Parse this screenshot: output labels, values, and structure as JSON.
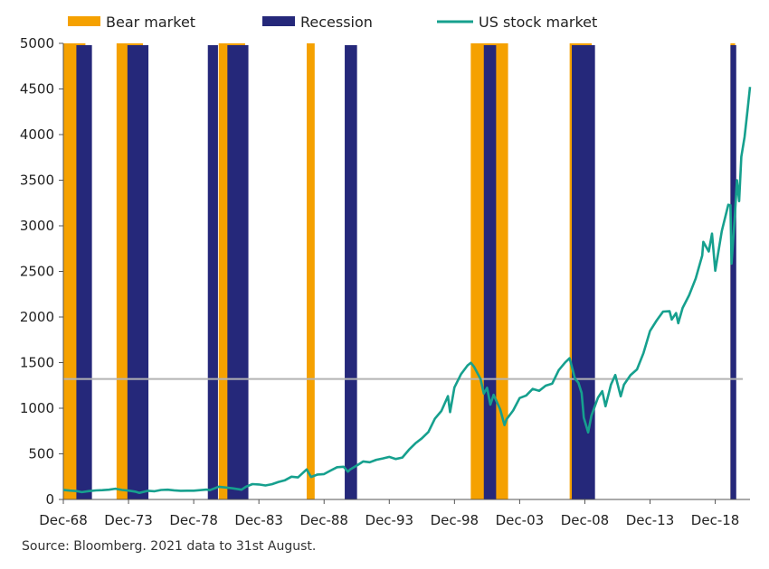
{
  "chart_data": {
    "type": "line",
    "title": "",
    "xlabel": "",
    "ylabel": "",
    "xlim": [
      "1968-12",
      "2021-08"
    ],
    "ylim": [
      0,
      5000
    ],
    "y_ticks": [
      0,
      500,
      1000,
      1500,
      2000,
      2500,
      3000,
      3500,
      4000,
      4500,
      5000
    ],
    "x_ticks": [
      {
        "date": "1968-12",
        "label": "Dec-68"
      },
      {
        "date": "1973-12",
        "label": "Dec-73"
      },
      {
        "date": "1978-12",
        "label": "Dec-78"
      },
      {
        "date": "1983-12",
        "label": "Dec-83"
      },
      {
        "date": "1988-12",
        "label": "Dec-88"
      },
      {
        "date": "1993-12",
        "label": "Dec-93"
      },
      {
        "date": "1998-12",
        "label": "Dec-98"
      },
      {
        "date": "2003-12",
        "label": "Dec-03"
      },
      {
        "date": "2008-12",
        "label": "Dec-08"
      },
      {
        "date": "2013-12",
        "label": "Dec-13"
      },
      {
        "date": "2018-12",
        "label": "Dec-18"
      }
    ],
    "grid": false,
    "legend_position": "top",
    "reference_line": {
      "y": 1320,
      "color": "#b3b3b3"
    },
    "legend": [
      {
        "label": "Bear market",
        "kind": "bar",
        "color": "#f5a100"
      },
      {
        "label": "Recession",
        "kind": "bar",
        "color": "#25287a"
      },
      {
        "label": "US stock market",
        "kind": "line",
        "color": "#16a08e"
      }
    ],
    "bear_market_periods": [
      {
        "start": "1968-12",
        "end": "1970-05"
      },
      {
        "start": "1973-01",
        "end": "1974-10"
      },
      {
        "start": "1980-11",
        "end": "1982-08"
      },
      {
        "start": "1987-08",
        "end": "1987-12"
      },
      {
        "start": "2000-03",
        "end": "2002-10"
      },
      {
        "start": "2007-10",
        "end": "2009-03"
      },
      {
        "start": "2020-02",
        "end": "2020-03"
      }
    ],
    "recession_periods": [
      {
        "start": "1969-12",
        "end": "1970-11"
      },
      {
        "start": "1973-11",
        "end": "1975-03"
      },
      {
        "start": "1980-01",
        "end": "1980-07"
      },
      {
        "start": "1981-07",
        "end": "1982-11"
      },
      {
        "start": "1990-07",
        "end": "1991-03"
      },
      {
        "start": "2001-03",
        "end": "2001-11"
      },
      {
        "start": "2007-12",
        "end": "2009-06"
      },
      {
        "start": "2020-02",
        "end": "2020-04"
      }
    ],
    "series": [
      {
        "name": "US stock market",
        "color": "#16a08e",
        "points": [
          [
            "1968-12",
            105
          ],
          [
            "1969-06",
            97
          ],
          [
            "1969-12",
            92
          ],
          [
            "1970-05",
            80
          ],
          [
            "1970-12",
            92
          ],
          [
            "1971-06",
            99
          ],
          [
            "1971-12",
            102
          ],
          [
            "1972-06",
            107
          ],
          [
            "1972-12",
            118
          ],
          [
            "1973-06",
            104
          ],
          [
            "1973-12",
            97
          ],
          [
            "1974-06",
            86
          ],
          [
            "1974-10",
            72
          ],
          [
            "1975-06",
            95
          ],
          [
            "1975-12",
            90
          ],
          [
            "1976-06",
            104
          ],
          [
            "1976-12",
            107
          ],
          [
            "1977-06",
            100
          ],
          [
            "1977-12",
            95
          ],
          [
            "1978-06",
            96
          ],
          [
            "1978-12",
            96
          ],
          [
            "1979-06",
            102
          ],
          [
            "1979-12",
            108
          ],
          [
            "1980-03",
            102
          ],
          [
            "1980-11",
            140
          ],
          [
            "1981-06",
            131
          ],
          [
            "1981-12",
            122
          ],
          [
            "1982-08",
            107
          ],
          [
            "1982-12",
            140
          ],
          [
            "1983-06",
            168
          ],
          [
            "1983-12",
            164
          ],
          [
            "1984-06",
            153
          ],
          [
            "1984-12",
            167
          ],
          [
            "1985-06",
            192
          ],
          [
            "1985-12",
            211
          ],
          [
            "1986-06",
            250
          ],
          [
            "1986-12",
            242
          ],
          [
            "1987-08",
            330
          ],
          [
            "1987-12",
            247
          ],
          [
            "1988-06",
            273
          ],
          [
            "1988-12",
            278
          ],
          [
            "1989-06",
            317
          ],
          [
            "1989-12",
            353
          ],
          [
            "1990-06",
            358
          ],
          [
            "1990-10",
            305
          ],
          [
            "1990-12",
            330
          ],
          [
            "1991-06",
            371
          ],
          [
            "1991-12",
            417
          ],
          [
            "1992-06",
            408
          ],
          [
            "1992-12",
            435
          ],
          [
            "1993-06",
            450
          ],
          [
            "1993-12",
            466
          ],
          [
            "1994-06",
            444
          ],
          [
            "1994-12",
            459
          ],
          [
            "1995-06",
            544
          ],
          [
            "1995-12",
            615
          ],
          [
            "1996-06",
            670
          ],
          [
            "1996-12",
            740
          ],
          [
            "1997-06",
            885
          ],
          [
            "1997-12",
            970
          ],
          [
            "1998-06",
            1133
          ],
          [
            "1998-08",
            957
          ],
          [
            "1998-12",
            1229
          ],
          [
            "1999-06",
            1372
          ],
          [
            "1999-12",
            1469
          ],
          [
            "2000-03",
            1498
          ],
          [
            "2000-06",
            1454
          ],
          [
            "2000-12",
            1320
          ],
          [
            "2001-03",
            1160
          ],
          [
            "2001-06",
            1224
          ],
          [
            "2001-09",
            1040
          ],
          [
            "2001-12",
            1148
          ],
          [
            "2002-06",
            990
          ],
          [
            "2002-10",
            815
          ],
          [
            "2002-12",
            880
          ],
          [
            "2003-06",
            975
          ],
          [
            "2003-12",
            1112
          ],
          [
            "2004-06",
            1140
          ],
          [
            "2004-12",
            1212
          ],
          [
            "2005-06",
            1191
          ],
          [
            "2005-12",
            1248
          ],
          [
            "2006-06",
            1270
          ],
          [
            "2006-12",
            1418
          ],
          [
            "2007-06",
            1503
          ],
          [
            "2007-10",
            1549
          ],
          [
            "2008-03",
            1322
          ],
          [
            "2008-06",
            1280
          ],
          [
            "2008-09",
            1166
          ],
          [
            "2008-11",
            896
          ],
          [
            "2009-03",
            735
          ],
          [
            "2009-06",
            919
          ],
          [
            "2009-12",
            1115
          ],
          [
            "2010-04",
            1187
          ],
          [
            "2010-07",
            1022
          ],
          [
            "2010-12",
            1258
          ],
          [
            "2011-04",
            1364
          ],
          [
            "2011-09",
            1131
          ],
          [
            "2011-12",
            1258
          ],
          [
            "2012-06",
            1362
          ],
          [
            "2012-12",
            1426
          ],
          [
            "2013-06",
            1606
          ],
          [
            "2013-12",
            1848
          ],
          [
            "2014-06",
            1960
          ],
          [
            "2014-12",
            2059
          ],
          [
            "2015-06",
            2063
          ],
          [
            "2015-08",
            1972
          ],
          [
            "2015-12",
            2044
          ],
          [
            "2016-02",
            1932
          ],
          [
            "2016-06",
            2099
          ],
          [
            "2016-12",
            2239
          ],
          [
            "2017-06",
            2423
          ],
          [
            "2017-12",
            2674
          ],
          [
            "2018-01",
            2824
          ],
          [
            "2018-06",
            2718
          ],
          [
            "2018-09",
            2914
          ],
          [
            "2018-12",
            2507
          ],
          [
            "2019-06",
            2942
          ],
          [
            "2019-12",
            3231
          ],
          [
            "2020-02",
            3225
          ],
          [
            "2020-03",
            2585
          ],
          [
            "2020-06",
            3100
          ],
          [
            "2020-08",
            3500
          ],
          [
            "2020-10",
            3270
          ],
          [
            "2020-12",
            3756
          ],
          [
            "2021-03",
            3973
          ],
          [
            "2021-06",
            4297
          ],
          [
            "2021-08",
            4522
          ]
        ]
      }
    ]
  },
  "source_note": "Source: Bloomberg. 2021 data to 31st August."
}
